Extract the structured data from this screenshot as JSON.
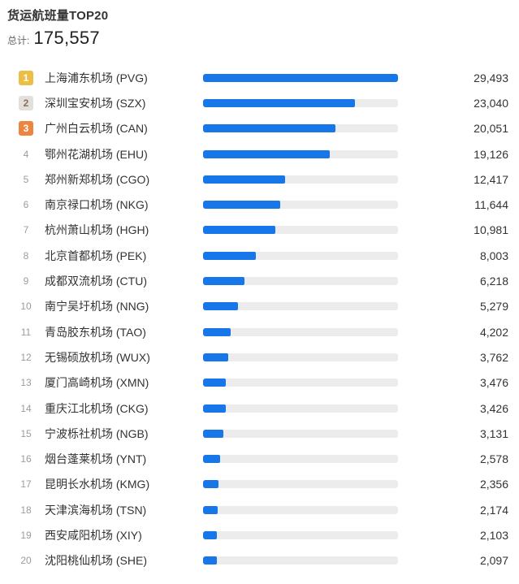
{
  "header": {
    "title": "货运航班量TOP20",
    "total_label": "总计:",
    "total_value": "175,557"
  },
  "colors": {
    "bar": "#1777E9",
    "track": "#ECECEC",
    "rank1_bg": "#ECBE45",
    "rank1_fg": "#FFFFFF",
    "rank2_bg": "#E2E0DC",
    "rank2_fg": "#8C6E54",
    "rank3_bg": "#EC8540",
    "rank3_fg": "#FFFFFF",
    "rank_default_fg": "#9C9C9C",
    "title_color": "#333333",
    "value_color": "#333333"
  },
  "chart_data": {
    "type": "bar",
    "title": "货运航班量TOP20",
    "total_label": "总计:",
    "total": 175557,
    "max_value": 29493,
    "orientation": "horizontal",
    "grid": false,
    "legend": false,
    "categories": [
      "上海浦东机场 (PVG)",
      "深圳宝安机场 (SZX)",
      "广州白云机场 (CAN)",
      "鄂州花湖机场 (EHU)",
      "郑州新郑机场 (CGO)",
      "南京禄口机场 (NKG)",
      "杭州萧山机场 (HGH)",
      "北京首都机场 (PEK)",
      "成都双流机场 (CTU)",
      "南宁吴圩机场 (NNG)",
      "青岛胶东机场 (TAO)",
      "无锡硕放机场 (WUX)",
      "厦门高崎机场 (XMN)",
      "重庆江北机场 (CKG)",
      "宁波栎社机场 (NGB)",
      "烟台蓬莱机场 (YNT)",
      "昆明长水机场 (KMG)",
      "天津滨海机场 (TSN)",
      "西安咸阳机场 (XIY)",
      "沈阳桃仙机场 (SHE)"
    ],
    "values": [
      29493,
      23040,
      20051,
      19126,
      12417,
      11644,
      10981,
      8003,
      6218,
      5279,
      4202,
      3762,
      3476,
      3426,
      3131,
      2578,
      2356,
      2174,
      2103,
      2097
    ],
    "value_labels": [
      "29,493",
      "23,040",
      "20,051",
      "19,126",
      "12,417",
      "11,644",
      "10,981",
      "8,003",
      "6,218",
      "5,279",
      "4,202",
      "3,762",
      "3,476",
      "3,426",
      "3,131",
      "2,578",
      "2,356",
      "2,174",
      "2,103",
      "2,097"
    ]
  }
}
